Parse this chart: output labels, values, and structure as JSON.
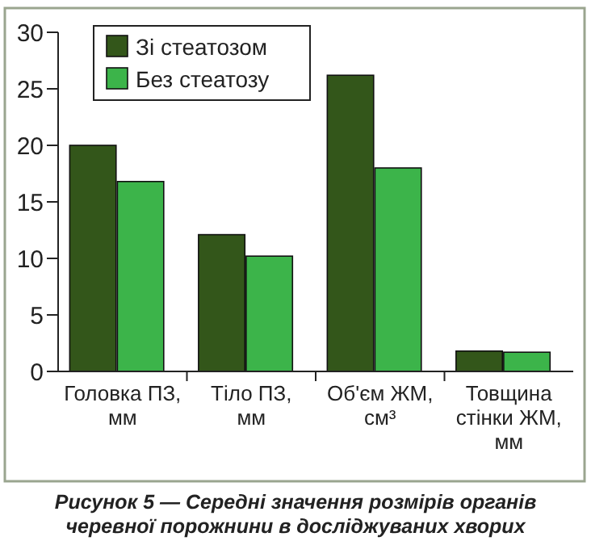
{
  "chart_data": {
    "type": "bar",
    "categories": [
      "Головка ПЗ,\nмм",
      "Тіло ПЗ,\nмм",
      "Об'єм ЖМ,\nсм³",
      "Товщина\nстінки ЖМ,\nмм"
    ],
    "series": [
      {
        "name": "Зі стеатозом",
        "color": "#33561a",
        "values": [
          20.0,
          12.1,
          26.2,
          1.8
        ]
      },
      {
        "name": "Без стеатозу",
        "color": "#3cb44a",
        "values": [
          16.8,
          10.2,
          18.0,
          1.7
        ]
      }
    ],
    "ylim": [
      0,
      30
    ],
    "yticks": [
      0,
      5,
      10,
      15,
      20,
      25,
      30
    ],
    "legend": "top left",
    "grid": false,
    "annotations": [
      "Рисунок 5 — Середні значення розмірів органів\nчеревної порожнини в досліджуваних хворих"
    ]
  }
}
